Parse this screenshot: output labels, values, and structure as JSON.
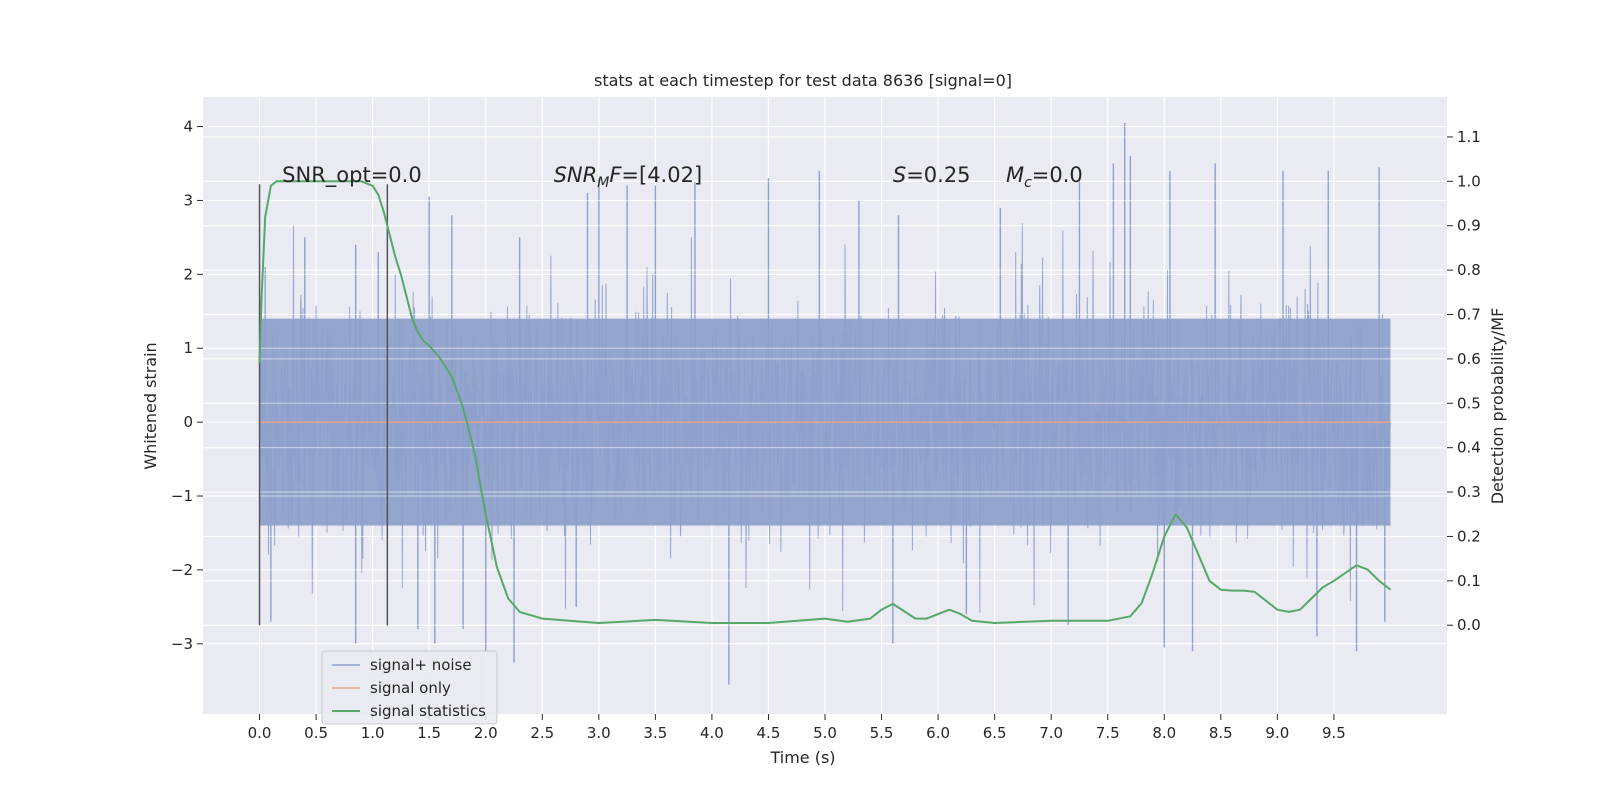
{
  "chart_data": {
    "type": "line",
    "title": "stats at each timestep for test data 8636 [signal=0]",
    "xlabel": "Time (s)",
    "ylabel": "Whitened strain",
    "ylabel_right": "Detection probability/MF",
    "xlim": [
      -0.5,
      10.5
    ],
    "ylim": [
      -3.95,
      4.4
    ],
    "ylim_right": [
      -0.2,
      1.19
    ],
    "x_ticks": [
      0.0,
      0.5,
      1.0,
      1.5,
      2.0,
      2.5,
      3.0,
      3.5,
      4.0,
      4.5,
      5.0,
      5.5,
      6.0,
      6.5,
      7.0,
      7.5,
      8.0,
      8.5,
      9.0,
      9.5
    ],
    "y_ticks": [
      -3,
      -2,
      -1,
      0,
      1,
      2,
      3,
      4
    ],
    "y_ticks_right": [
      0.0,
      0.1,
      0.2,
      0.3,
      0.4,
      0.5,
      0.6,
      0.7,
      0.8,
      0.9,
      1.0,
      1.1
    ],
    "grid": true,
    "legend_position": "lower-left",
    "vertical_markers_x": [
      0.0,
      1.13
    ],
    "annotations": [
      {
        "segments": [
          {
            "text": "SNR_opt=0.0"
          }
        ],
        "x": 0.2,
        "y": 3.25
      },
      {
        "segments": [
          {
            "text": "SNR",
            "style": "italic"
          },
          {
            "text": "M",
            "style": "italic-sub"
          },
          {
            "text": "F",
            "style": "italic"
          },
          {
            "text": "=[4.02]"
          }
        ],
        "x": 2.6,
        "y": 3.25
      },
      {
        "segments": [
          {
            "text": "S",
            "style": "italic"
          },
          {
            "text": "=0.25"
          }
        ],
        "x": 5.6,
        "y": 3.25
      },
      {
        "segments": [
          {
            "text": "M",
            "style": "italic"
          },
          {
            "text": "c",
            "style": "italic-sub"
          },
          {
            "text": "=0.0"
          }
        ],
        "x": 6.6,
        "y": 3.25
      }
    ],
    "series": [
      {
        "name": "signal+ noise",
        "axis": "left",
        "color": "#8da0cb",
        "x_range": [
          0.0,
          10.0
        ],
        "typical_band": [
          -1.4,
          1.4
        ],
        "upper_peaks": [
          {
            "x": 0.05,
            "y": 2.1
          },
          {
            "x": 0.4,
            "y": 2.5
          },
          {
            "x": 0.85,
            "y": 2.4
          },
          {
            "x": 1.05,
            "y": 2.3
          },
          {
            "x": 1.5,
            "y": 3.05
          },
          {
            "x": 1.7,
            "y": 2.8
          },
          {
            "x": 2.3,
            "y": 2.5
          },
          {
            "x": 2.9,
            "y": 3.1
          },
          {
            "x": 3.0,
            "y": 3.3
          },
          {
            "x": 3.25,
            "y": 3.2
          },
          {
            "x": 3.5,
            "y": 3.2
          },
          {
            "x": 3.85,
            "y": 3.25
          },
          {
            "x": 4.5,
            "y": 3.3
          },
          {
            "x": 4.95,
            "y": 3.4
          },
          {
            "x": 5.3,
            "y": 3.0
          },
          {
            "x": 5.65,
            "y": 2.8
          },
          {
            "x": 6.55,
            "y": 2.9
          },
          {
            "x": 7.25,
            "y": 3.3
          },
          {
            "x": 7.55,
            "y": 3.5
          },
          {
            "x": 7.65,
            "y": 4.05
          },
          {
            "x": 7.7,
            "y": 3.6
          },
          {
            "x": 8.05,
            "y": 3.4
          },
          {
            "x": 8.45,
            "y": 3.5
          },
          {
            "x": 9.05,
            "y": 3.4
          },
          {
            "x": 9.45,
            "y": 3.4
          },
          {
            "x": 9.9,
            "y": 3.45
          }
        ],
        "lower_peaks": [
          {
            "x": 0.1,
            "y": -2.7
          },
          {
            "x": 0.85,
            "y": -3.0
          },
          {
            "x": 1.4,
            "y": -2.8
          },
          {
            "x": 1.55,
            "y": -3.0
          },
          {
            "x": 1.8,
            "y": -2.8
          },
          {
            "x": 2.0,
            "y": -3.1
          },
          {
            "x": 2.25,
            "y": -3.25
          },
          {
            "x": 2.8,
            "y": -2.5
          },
          {
            "x": 4.15,
            "y": -3.55
          },
          {
            "x": 5.6,
            "y": -3.0
          },
          {
            "x": 6.25,
            "y": -2.6
          },
          {
            "x": 7.15,
            "y": -2.75
          },
          {
            "x": 8.0,
            "y": -3.05
          },
          {
            "x": 8.25,
            "y": -3.1
          },
          {
            "x": 9.35,
            "y": -2.9
          },
          {
            "x": 9.7,
            "y": -3.1
          },
          {
            "x": 9.95,
            "y": -2.7
          }
        ]
      },
      {
        "name": "signal only",
        "axis": "left",
        "color": "#e5a48c",
        "x": [
          0.0,
          10.0
        ],
        "y": [
          0.0,
          0.0
        ]
      },
      {
        "name": "signal statistics",
        "axis": "right",
        "color": "#55a868",
        "x": [
          0.0,
          0.02,
          0.05,
          0.1,
          0.15,
          0.2,
          0.3,
          0.5,
          0.7,
          0.9,
          1.0,
          1.05,
          1.1,
          1.15,
          1.2,
          1.25,
          1.3,
          1.35,
          1.4,
          1.45,
          1.5,
          1.6,
          1.7,
          1.8,
          1.9,
          2.0,
          2.1,
          2.2,
          2.3,
          2.5,
          3.0,
          3.5,
          4.0,
          4.5,
          5.0,
          5.2,
          5.4,
          5.5,
          5.6,
          5.8,
          5.9,
          6.0,
          6.1,
          6.2,
          6.3,
          6.5,
          7.0,
          7.5,
          7.7,
          7.8,
          7.9,
          8.0,
          8.1,
          8.2,
          8.3,
          8.4,
          8.5,
          8.6,
          8.7,
          8.8,
          9.0,
          9.1,
          9.2,
          9.3,
          9.4,
          9.5,
          9.7,
          9.8,
          9.9,
          10.0
        ],
        "y": [
          0.59,
          0.75,
          0.92,
          0.99,
          1.0,
          1.0,
          1.0,
          1.0,
          1.0,
          1.0,
          0.99,
          0.97,
          0.93,
          0.88,
          0.83,
          0.79,
          0.74,
          0.69,
          0.66,
          0.64,
          0.63,
          0.6,
          0.56,
          0.49,
          0.39,
          0.25,
          0.13,
          0.06,
          0.03,
          0.015,
          0.005,
          0.012,
          0.005,
          0.005,
          0.015,
          0.008,
          0.015,
          0.035,
          0.048,
          0.015,
          0.015,
          0.025,
          0.035,
          0.025,
          0.01,
          0.005,
          0.01,
          0.01,
          0.02,
          0.05,
          0.12,
          0.2,
          0.25,
          0.22,
          0.16,
          0.1,
          0.08,
          0.078,
          0.078,
          0.075,
          0.035,
          0.03,
          0.035,
          0.06,
          0.085,
          0.1,
          0.135,
          0.125,
          0.1,
          0.08
        ]
      }
    ]
  }
}
